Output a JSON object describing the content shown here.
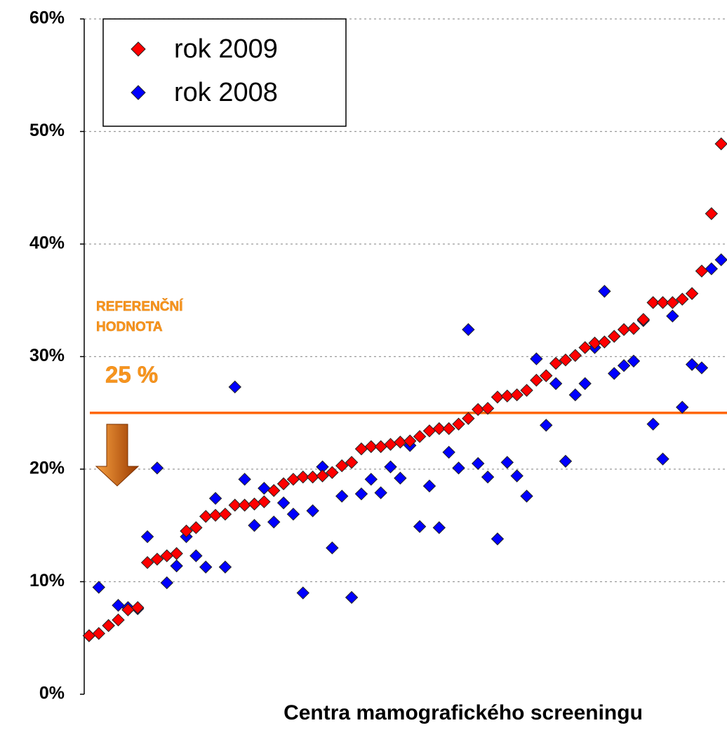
{
  "chart_data": {
    "type": "scatter",
    "x_label": "Centra mamografického screeningu",
    "x": [
      1,
      2,
      3,
      4,
      5,
      6,
      7,
      8,
      9,
      10,
      11,
      12,
      13,
      14,
      15,
      16,
      17,
      18,
      19,
      20,
      21,
      22,
      23,
      24,
      25,
      26,
      27,
      28,
      29,
      30,
      31,
      32,
      33,
      34,
      35,
      36,
      37,
      38,
      39,
      40,
      41,
      42,
      43,
      44,
      45,
      46,
      47,
      48,
      49,
      50,
      51,
      52,
      53,
      54,
      55,
      56,
      57,
      58,
      59,
      60,
      61,
      62,
      63,
      64,
      65,
      66
    ],
    "xlim": [
      0.5,
      66.6
    ],
    "ylim": [
      0,
      60
    ],
    "yticks": [
      {
        "value": 0,
        "label": "0%"
      },
      {
        "value": 10,
        "label": "10%"
      },
      {
        "value": 20,
        "label": "20%"
      },
      {
        "value": 30,
        "label": "30%"
      },
      {
        "value": 40,
        "label": "40%"
      },
      {
        "value": 50,
        "label": "50%"
      },
      {
        "value": 60,
        "label": "60%"
      }
    ],
    "grid": true,
    "legend": "top-left",
    "series": [
      {
        "name": "rok 2009",
        "color": "#ff0000",
        "values": [
          5.2,
          5.4,
          6.1,
          6.6,
          7.5,
          7.7,
          11.7,
          12.0,
          12.3,
          12.5,
          14.5,
          14.8,
          15.8,
          15.9,
          16.0,
          16.8,
          16.8,
          16.9,
          17.1,
          18.1,
          18.7,
          19.1,
          19.3,
          19.3,
          19.4,
          19.7,
          20.3,
          20.6,
          21.8,
          22.0,
          22.0,
          22.2,
          22.4,
          22.5,
          22.9,
          23.4,
          23.6,
          23.6,
          24.0,
          24.5,
          25.3,
          25.4,
          26.4,
          26.5,
          26.6,
          27.0,
          27.9,
          28.3,
          29.4,
          29.7,
          30.1,
          30.8,
          31.2,
          31.3,
          31.8,
          32.4,
          32.5,
          33.3,
          34.8,
          34.8,
          34.8,
          35.1,
          35.6,
          37.6,
          42.7,
          48.9
        ]
      },
      {
        "name": "rok 2008",
        "color": "#0000ff",
        "values": [
          5.2,
          9.5,
          6.1,
          7.9,
          7.7,
          7.6,
          14.0,
          20.1,
          9.9,
          11.4,
          14.0,
          12.3,
          11.3,
          17.4,
          11.3,
          27.3,
          19.1,
          15.0,
          18.3,
          15.3,
          17.0,
          16.0,
          9.0,
          16.3,
          20.2,
          13.0,
          17.6,
          8.6,
          17.8,
          19.1,
          17.9,
          20.2,
          19.2,
          22.1,
          14.9,
          18.5,
          14.8,
          21.5,
          20.1,
          32.4,
          20.5,
          19.3,
          13.8,
          20.6,
          19.4,
          17.6,
          29.8,
          23.9,
          27.6,
          20.7,
          26.6,
          27.6,
          30.8,
          35.8,
          28.5,
          29.2,
          29.6,
          33.2,
          24.0,
          20.9,
          33.6,
          25.5,
          29.3,
          29.0,
          37.8,
          38.6
        ]
      }
    ],
    "reference_line": {
      "value": 25,
      "label": "25 %",
      "color": "#ff6600"
    },
    "annotation": [
      "REFERENČNÍ",
      "HODNOTA"
    ]
  }
}
